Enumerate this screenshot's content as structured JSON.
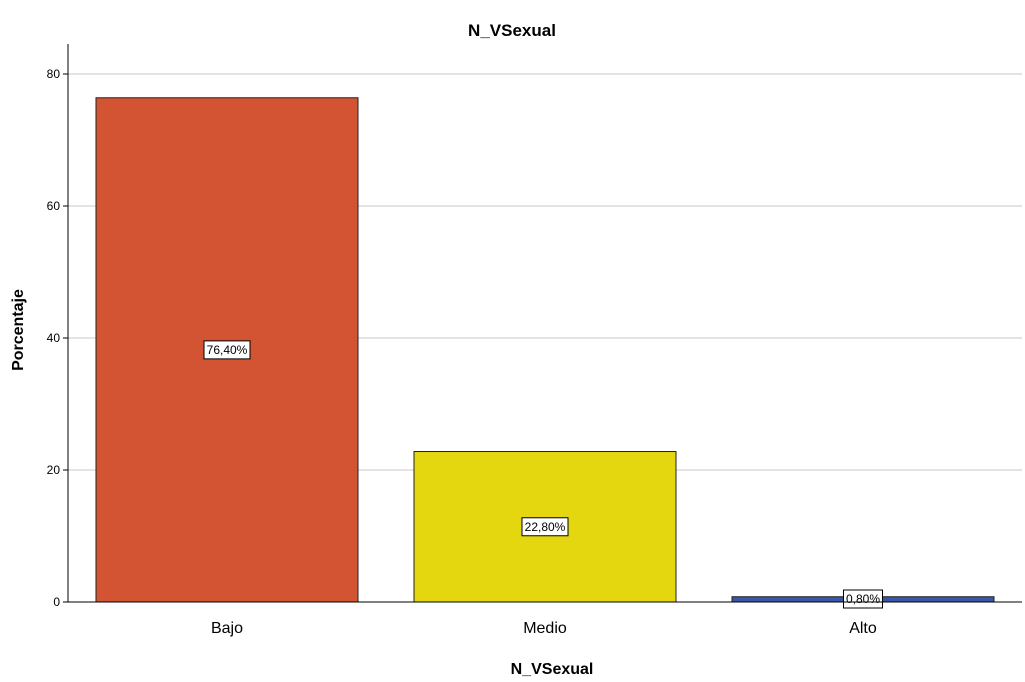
{
  "chart_data": {
    "type": "bar",
    "title": "N_VSexual",
    "xlabel": "N_VSexual",
    "ylabel": "Porcentaje",
    "categories": [
      "Bajo",
      "Medio",
      "Alto"
    ],
    "values": [
      76.4,
      22.8,
      0.8
    ],
    "data_labels": [
      "76,40%",
      "22,80%",
      "0,80%"
    ],
    "colors": [
      "#d35432",
      "#e5d70f",
      "#3a56a8"
    ],
    "ylim": [
      0,
      84
    ],
    "yticks": [
      0,
      20,
      40,
      60,
      80
    ],
    "grid": true,
    "legend": "none"
  }
}
